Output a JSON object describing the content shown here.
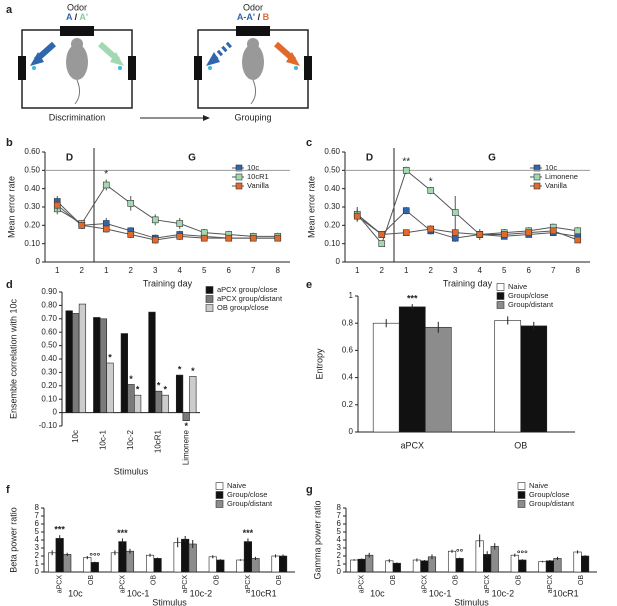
{
  "diagram": {
    "panel": "a",
    "left": {
      "title": "Odor",
      "odors": [
        "A",
        "A'"
      ],
      "separator": "/",
      "caption": "Discrimination"
    },
    "right": {
      "title": "Odor",
      "odors": [
        "A-A'",
        "B"
      ],
      "separator": "/",
      "caption": "Grouping"
    }
  },
  "chart_data": [
    {
      "panel": "b",
      "type": "line",
      "ylabel": "Mean error rate",
      "xlabel": "Training day",
      "categories": [
        "1",
        "2",
        "1",
        "2",
        "3",
        "4",
        "5",
        "6",
        "7",
        "8"
      ],
      "phase": [
        "D",
        "D",
        "G",
        "G",
        "G",
        "G",
        "G",
        "G",
        "G",
        "G"
      ],
      "hline": 0.5,
      "significance": [
        null,
        null,
        "*",
        null,
        null,
        null,
        null,
        null,
        null,
        null
      ],
      "ylim": [
        0,
        0.6
      ],
      "yticks": [
        0,
        {
          "value": 0.1,
          "label": "0.10"
        },
        {
          "value": 0.2,
          "label": "0.20"
        },
        {
          "value": 0.3,
          "label": "0.30"
        },
        {
          "value": 0.4,
          "label": "0.40"
        },
        {
          "value": 0.5,
          "label": "0.50"
        },
        {
          "value": 0.6,
          "label": "0.60"
        }
      ],
      "legend": "upper right",
      "series": [
        {
          "name": "10c",
          "color": "#2f66ad",
          "values": [
            0.33,
            0.2,
            0.21,
            0.17,
            0.13,
            0.15,
            0.14,
            0.13,
            0.13,
            0.13
          ],
          "errors": [
            0.03,
            0.02,
            0.03,
            0.02,
            0.02,
            0.02,
            0.01,
            0.01,
            0.01,
            0.01
          ]
        },
        {
          "name": "10cR1",
          "color": "#a3d9b0",
          "values": [
            0.29,
            0.21,
            0.42,
            0.32,
            0.23,
            0.21,
            0.16,
            0.15,
            0.14,
            0.14
          ],
          "errors": [
            0.03,
            0.02,
            0.03,
            0.04,
            0.03,
            0.03,
            0.02,
            0.02,
            0.02,
            0.02
          ]
        },
        {
          "name": "Vanilla",
          "color": "#e2692c",
          "values": [
            0.31,
            0.2,
            0.18,
            0.15,
            0.12,
            0.14,
            0.13,
            0.13,
            0.13,
            0.13
          ],
          "errors": [
            0.03,
            0.02,
            0.02,
            0.02,
            0.02,
            0.02,
            0.01,
            0.01,
            0.01,
            0.01
          ]
        }
      ]
    },
    {
      "panel": "c",
      "type": "line",
      "ylabel": "Mean error rate",
      "xlabel": "Training day",
      "categories": [
        "1",
        "2",
        "1",
        "2",
        "3",
        "4",
        "5",
        "6",
        "7",
        "8"
      ],
      "phase": [
        "D",
        "D",
        "G",
        "G",
        "G",
        "G",
        "G",
        "G",
        "G",
        "G"
      ],
      "hline": 0.5,
      "significance": [
        null,
        null,
        "**",
        "*",
        null,
        null,
        null,
        null,
        null,
        null
      ],
      "ylim": [
        0,
        0.6
      ],
      "yticks": [
        0,
        {
          "value": 0.1,
          "label": "0.10"
        },
        {
          "value": 0.2,
          "label": "0.20"
        },
        {
          "value": 0.3,
          "label": "0.30"
        },
        {
          "value": 0.4,
          "label": "0.40"
        },
        {
          "value": 0.5,
          "label": "0.50"
        },
        {
          "value": 0.6,
          "label": "0.60"
        }
      ],
      "legend": "upper right",
      "series": [
        {
          "name": "10c",
          "color": "#2f66ad",
          "values": [
            0.26,
            0.15,
            0.28,
            0.17,
            0.13,
            0.15,
            0.14,
            0.15,
            0.16,
            0.14
          ],
          "errors": [
            0.03,
            0.01,
            0.02,
            0.02,
            0.02,
            0.02,
            0.01,
            0.01,
            0.01,
            0.01
          ]
        },
        {
          "name": "Limonene",
          "color": "#a3d9b0",
          "values": [
            0.26,
            0.1,
            0.5,
            0.39,
            0.27,
            0.15,
            0.16,
            0.17,
            0.19,
            0.17
          ],
          "errors": [
            0.04,
            0.01,
            0.02,
            0.02,
            0.09,
            0.03,
            0.02,
            0.02,
            0.02,
            0.02
          ]
        },
        {
          "name": "Vanilla",
          "color": "#e2692c",
          "values": [
            0.25,
            0.15,
            0.16,
            0.18,
            0.16,
            0.15,
            0.15,
            0.16,
            0.17,
            0.12
          ],
          "errors": [
            0.03,
            0.01,
            0.01,
            0.02,
            0.02,
            0.01,
            0.01,
            0.01,
            0.01,
            0.01
          ]
        }
      ]
    },
    {
      "panel": "d",
      "type": "bar",
      "ylabel": "Ensemble correlation with 10c",
      "xlabel": "Stimulus",
      "categories": [
        "10c",
        "10c-1",
        "10c-2",
        "10cR1",
        "Limonene"
      ],
      "ylim": [
        -0.1,
        0.9
      ],
      "yticks": [
        {
          "value": -0.1,
          "label": "-0.10"
        },
        0,
        {
          "value": 0.1,
          "label": "0.10"
        },
        {
          "value": 0.2,
          "label": "0.20"
        },
        {
          "value": 0.3,
          "label": "0.30"
        },
        {
          "value": 0.4,
          "label": "0.40"
        },
        {
          "value": 0.5,
          "label": "0.50"
        },
        {
          "value": 0.6,
          "label": "0.60"
        },
        {
          "value": 0.7,
          "label": "0.70"
        },
        {
          "value": 0.8,
          "label": "0.80"
        },
        {
          "value": 0.9,
          "label": "0.90"
        }
      ],
      "legend": "right",
      "series": [
        {
          "name": "aPCX group/close",
          "color": "#111111",
          "values": [
            0.76,
            0.71,
            0.59,
            0.75,
            0.28
          ],
          "significance": [
            null,
            null,
            null,
            null,
            "*"
          ]
        },
        {
          "name": "aPCX group/distant",
          "color": "#7a7a7a",
          "values": [
            0.74,
            0.7,
            0.21,
            0.16,
            -0.06
          ],
          "significance": [
            null,
            null,
            "*",
            "*",
            "*"
          ]
        },
        {
          "name": "OB group/close",
          "color": "#cccccc",
          "values": [
            0.81,
            0.37,
            0.13,
            0.13,
            0.27
          ],
          "significance": [
            null,
            "*",
            "*",
            "*",
            "*"
          ]
        }
      ]
    },
    {
      "panel": "e",
      "type": "bar",
      "ylabel": "Entropy",
      "categories": [
        "aPCX",
        "OB"
      ],
      "ylim": [
        0,
        1
      ],
      "yticks": [
        0,
        0.2,
        0.4,
        0.6,
        0.8,
        1
      ],
      "legend": "upper right",
      "series": [
        {
          "name": "Naive",
          "color": "#ffffff",
          "values": [
            0.8,
            0.82
          ],
          "errors": [
            0.03,
            0.03
          ]
        },
        {
          "name": "Group/close",
          "color": "#111111",
          "values": [
            0.92,
            0.78
          ],
          "errors": [
            0.02,
            0.03
          ],
          "significance": [
            "***",
            null
          ]
        },
        {
          "name": "Group/distant",
          "color": "#8c8c8c",
          "values": [
            0.77,
            null
          ],
          "errors": [
            0.04,
            null
          ]
        }
      ]
    },
    {
      "panel": "f",
      "type": "bar",
      "ylabel": "Beta power ratio",
      "xlabel": "Stimulus",
      "categories": [
        "aPCX",
        "OB",
        "aPCX",
        "OB",
        "aPCX",
        "OB",
        "aPCX",
        "OB"
      ],
      "groups": [
        "10c",
        "10c",
        "10c-1",
        "10c-1",
        "10c-2",
        "10c-2",
        "10cR1",
        "10cR1"
      ],
      "ylim": [
        0,
        8
      ],
      "yticks": [
        0,
        1,
        2,
        3,
        4,
        5,
        6,
        7,
        8
      ],
      "legend": "upper right",
      "series": [
        {
          "name": "Naive",
          "color": "#ffffff",
          "values": [
            2.4,
            1.8,
            2.4,
            2.1,
            3.7,
            1.9,
            1.5,
            2.0
          ],
          "errors": [
            0.3,
            0.2,
            0.3,
            0.2,
            0.6,
            0.2,
            0.1,
            0.2
          ]
        },
        {
          "name": "Group/close",
          "color": "#111111",
          "values": [
            4.2,
            1.2,
            3.8,
            1.7,
            4.1,
            1.5,
            3.8,
            2.0
          ],
          "errors": [
            0.4,
            0.1,
            0.4,
            0.1,
            0.4,
            0.1,
            0.4,
            0.2
          ],
          "significance": [
            "***",
            "°°°",
            "***",
            null,
            null,
            null,
            "***",
            null
          ]
        },
        {
          "name": "Group/distant",
          "color": "#8c8c8c",
          "values": [
            2.2,
            null,
            2.6,
            null,
            3.5,
            null,
            1.7,
            null
          ],
          "errors": [
            0.2,
            null,
            0.3,
            null,
            0.5,
            null,
            0.2,
            null
          ]
        }
      ]
    },
    {
      "panel": "g",
      "type": "bar",
      "ylabel": "Gamma power ratio",
      "xlabel": "Stimulus",
      "categories": [
        "aPCX",
        "OB",
        "aPCX",
        "OB",
        "aPCX",
        "OB",
        "aPCX",
        "OB"
      ],
      "groups": [
        "10c",
        "10c",
        "10c-1",
        "10c-1",
        "10c-2",
        "10c-2",
        "10cR1",
        "10cR1"
      ],
      "ylim": [
        0,
        8
      ],
      "yticks": [
        0,
        1,
        2,
        3,
        4,
        5,
        6,
        7,
        8
      ],
      "legend": "upper right",
      "series": [
        {
          "name": "Naive",
          "color": "#ffffff",
          "values": [
            1.5,
            1.4,
            1.5,
            2.6,
            3.9,
            2.1,
            1.3,
            2.5
          ],
          "errors": [
            0.1,
            0.2,
            0.2,
            0.2,
            0.8,
            0.2,
            0.1,
            0.2
          ]
        },
        {
          "name": "Group/close",
          "color": "#111111",
          "values": [
            1.6,
            1.1,
            1.4,
            1.7,
            2.2,
            1.5,
            1.4,
            2.0
          ],
          "errors": [
            0.1,
            0.1,
            0.1,
            0.1,
            0.4,
            0.1,
            0.1,
            0.1
          ],
          "significance": [
            null,
            null,
            null,
            "°°",
            null,
            "°°°",
            null,
            null
          ]
        },
        {
          "name": "Group/distant",
          "color": "#8c8c8c",
          "values": [
            2.1,
            null,
            1.9,
            null,
            3.2,
            null,
            1.7,
            null
          ],
          "errors": [
            0.3,
            null,
            0.3,
            null,
            0.4,
            null,
            0.2,
            null
          ]
        }
      ]
    }
  ]
}
